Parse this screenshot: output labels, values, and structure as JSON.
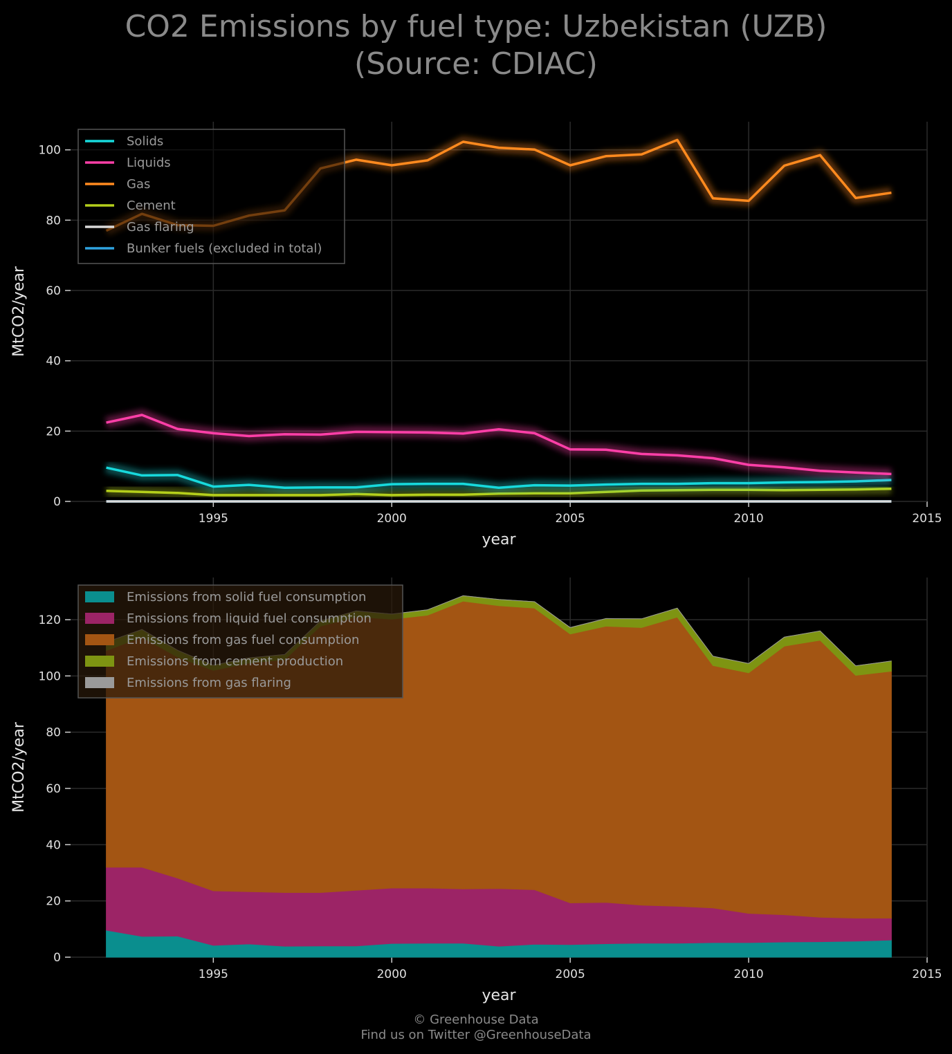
{
  "title": {
    "line1": "CO2 Emissions by fuel type: Uzbekistan (UZB)",
    "line2": "(Source: CDIAC)"
  },
  "footer": {
    "line1": "© Greenhouse Data",
    "line2": "Find us on Twitter @GreenhouseData"
  },
  "chart_data": [
    {
      "type": "line",
      "xlabel": "year",
      "ylabel": "MtCO2/year",
      "xlim": [
        1991,
        2015
      ],
      "ylim": [
        0,
        108
      ],
      "xticks": [
        1995,
        2000,
        2005,
        2010,
        2015
      ],
      "yticks": [
        0,
        20,
        40,
        60,
        80,
        100
      ],
      "grid": true,
      "legend_position": "top-left",
      "x": [
        1992,
        1993,
        1994,
        1995,
        1996,
        1997,
        1998,
        1999,
        2000,
        2001,
        2002,
        2003,
        2004,
        2005,
        2006,
        2007,
        2008,
        2009,
        2010,
        2011,
        2012,
        2013,
        2014
      ],
      "series": [
        {
          "name": "Solids",
          "color": "#17d9dc",
          "values": [
            9.6,
            7.4,
            7.5,
            4.2,
            4.7,
            3.9,
            4.0,
            4.0,
            4.9,
            5.0,
            5.0,
            3.9,
            4.6,
            4.5,
            4.8,
            5.0,
            5.0,
            5.2,
            5.2,
            5.4,
            5.5,
            5.7,
            6.1
          ]
        },
        {
          "name": "Liquids",
          "color": "#ff3fa8",
          "values": [
            22.4,
            24.6,
            20.6,
            19.4,
            18.6,
            19.1,
            19.0,
            19.8,
            19.7,
            19.6,
            19.3,
            20.5,
            19.4,
            14.8,
            14.7,
            13.5,
            13.1,
            12.3,
            10.4,
            9.7,
            8.7,
            8.2,
            7.8
          ]
        },
        {
          "name": "Gas",
          "color": "#ff8a1f",
          "values": [
            77.0,
            81.8,
            78.6,
            78.4,
            81.3,
            82.8,
            94.7,
            97.2,
            95.6,
            97.0,
            102.3,
            100.6,
            100.1,
            95.6,
            98.2,
            98.7,
            102.8,
            86.2,
            85.5,
            95.5,
            98.5,
            86.3,
            87.8
          ]
        },
        {
          "name": "Cement",
          "color": "#b5cf1b",
          "values": [
            3.0,
            2.7,
            2.4,
            1.8,
            1.8,
            1.8,
            1.8,
            2.1,
            1.8,
            1.9,
            1.9,
            2.2,
            2.3,
            2.3,
            2.7,
            3.1,
            3.2,
            3.3,
            3.3,
            3.2,
            3.3,
            3.4,
            3.6
          ]
        },
        {
          "name": "Gas flaring",
          "color": "#d9d9d9",
          "values": [
            0,
            0,
            0,
            0,
            0,
            0,
            0,
            0,
            0,
            0,
            0,
            0,
            0,
            0,
            0,
            0,
            0,
            0,
            0,
            0,
            0,
            0,
            0
          ]
        },
        {
          "name": "Bunker fuels (excluded in total)",
          "color": "#2fa3e0",
          "values": [
            0,
            0,
            0,
            0,
            0,
            0,
            0,
            0,
            0,
            0,
            0,
            0,
            0,
            0,
            0,
            0,
            0,
            0,
            0,
            0,
            0,
            0,
            0
          ]
        }
      ]
    },
    {
      "type": "area",
      "stacked": true,
      "xlabel": "year",
      "ylabel": "MtCO2/year",
      "xlim": [
        1991,
        2015
      ],
      "ylim": [
        0,
        135
      ],
      "xticks": [
        1995,
        2000,
        2005,
        2010,
        2015
      ],
      "yticks": [
        0,
        20,
        40,
        60,
        80,
        100,
        120
      ],
      "grid": true,
      "legend_position": "top-left",
      "x": [
        1992,
        1993,
        1994,
        1995,
        1996,
        1997,
        1998,
        1999,
        2000,
        2001,
        2002,
        2003,
        2004,
        2005,
        2006,
        2007,
        2008,
        2009,
        2010,
        2011,
        2012,
        2013,
        2014
      ],
      "series": [
        {
          "name": "Emissions from solid fuel consumption",
          "color": "#0a8e8e",
          "values": [
            9.6,
            7.4,
            7.5,
            4.2,
            4.7,
            3.9,
            4.0,
            4.0,
            4.9,
            5.0,
            5.0,
            3.9,
            4.6,
            4.5,
            4.8,
            5.0,
            5.0,
            5.2,
            5.2,
            5.4,
            5.5,
            5.7,
            6.1
          ]
        },
        {
          "name": "Emissions from liquid fuel consumption",
          "color": "#9c2466",
          "values": [
            22.4,
            24.6,
            20.6,
            19.4,
            18.6,
            19.1,
            19.0,
            19.8,
            19.7,
            19.6,
            19.3,
            20.5,
            19.4,
            14.8,
            14.7,
            13.5,
            13.1,
            12.3,
            10.4,
            9.7,
            8.7,
            8.2,
            7.8
          ]
        },
        {
          "name": "Emissions from gas fuel consumption",
          "color": "#a35513",
          "values": [
            77.0,
            81.8,
            78.6,
            78.4,
            81.3,
            82.8,
            94.7,
            97.2,
            95.6,
            97.0,
            102.3,
            100.6,
            100.1,
            95.6,
            98.2,
            98.7,
            102.8,
            86.2,
            85.5,
            95.5,
            98.5,
            86.3,
            87.8
          ]
        },
        {
          "name": "Emissions from cement production",
          "color": "#7e9412",
          "values": [
            3.0,
            2.7,
            2.4,
            1.8,
            1.8,
            1.8,
            1.8,
            2.1,
            1.8,
            1.9,
            1.9,
            2.2,
            2.3,
            2.3,
            2.7,
            3.1,
            3.2,
            3.3,
            3.3,
            3.2,
            3.3,
            3.4,
            3.6
          ]
        },
        {
          "name": "Emissions from gas flaring",
          "color": "#9a9a9a",
          "values": [
            0,
            0,
            0,
            0,
            0,
            0,
            0,
            0,
            0,
            0,
            0,
            0,
            0,
            0,
            0,
            0,
            0,
            0,
            0,
            0,
            0,
            0,
            0
          ]
        }
      ]
    }
  ]
}
